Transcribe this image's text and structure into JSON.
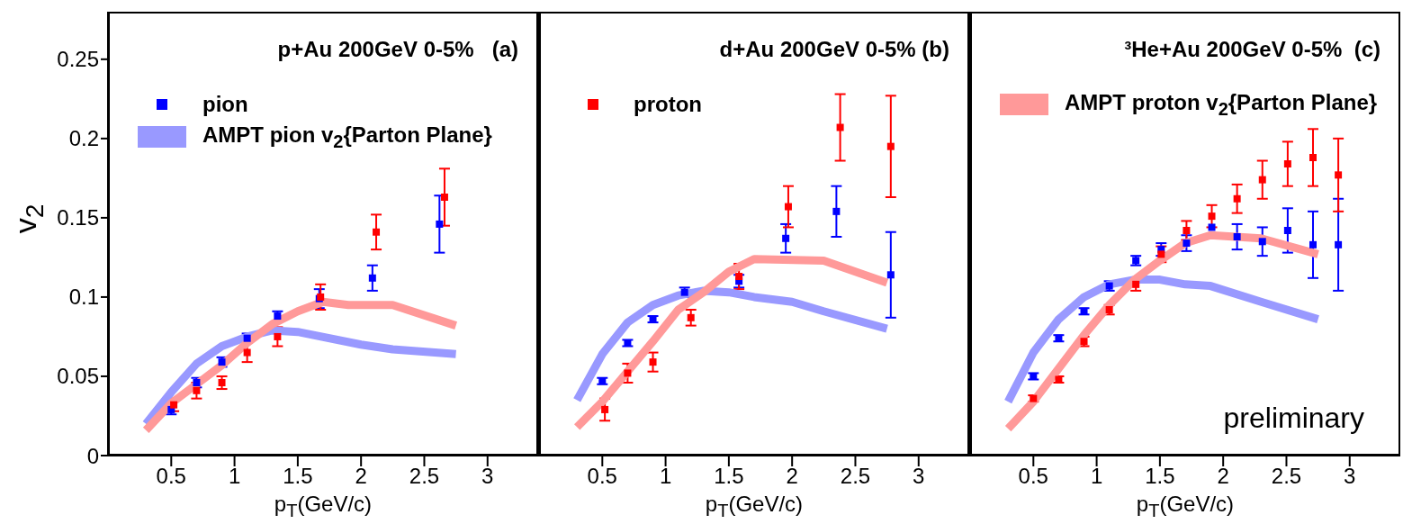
{
  "chart_data": [
    {
      "type": "scatter",
      "title": "p+Au 200GeV 0-5%   (a)",
      "xlabel": "p$_{T}$(GeV/c)",
      "ylabel": "v$_{2}$",
      "xlim": [
        0,
        3.4
      ],
      "xticks": [
        0.5,
        1,
        1.5,
        2,
        2.5,
        3
      ],
      "ylim": [
        0,
        0.28
      ],
      "yticks": [
        0,
        0.05,
        0.1,
        0.15,
        0.2,
        0.25
      ],
      "legend": "top left",
      "series": [
        {
          "name": "pion",
          "type": "scatter",
          "marker": "square",
          "color": "#0000ff",
          "x": [
            0.5,
            0.7,
            0.9,
            1.1,
            1.34,
            1.67,
            2.09,
            2.62
          ],
          "values": [
            0.029,
            0.046,
            0.059,
            0.074,
            0.088,
            0.099,
            0.112,
            0.146
          ],
          "errors": [
            0.003,
            0.003,
            0.003,
            0.003,
            0.003,
            0.006,
            0.008,
            0.018
          ]
        },
        {
          "type": "scatter",
          "marker": "square",
          "color": "#ff0000",
          "x": [
            0.52,
            0.7,
            0.9,
            1.1,
            1.34,
            1.68,
            2.12,
            2.66
          ],
          "values": [
            0.032,
            0.041,
            0.046,
            0.065,
            0.075,
            0.1,
            0.141,
            0.163
          ],
          "errors": [
            0.004,
            0.005,
            0.004,
            0.006,
            0.006,
            0.008,
            0.011,
            0.018
          ]
        },
        {
          "name": "AMPT pion v$_{2}${Parton Plane}",
          "type": "line",
          "marker": "none",
          "color": "#9999ff",
          "x": [
            0.3,
            0.5,
            0.7,
            0.9,
            1.1,
            1.3,
            1.5,
            2,
            2.25,
            2.75
          ],
          "values": [
            0.02,
            0.04,
            0.058,
            0.069,
            0.075,
            0.079,
            0.078,
            0.07,
            0.067,
            0.064
          ]
        },
        {
          "type": "line",
          "marker": "none",
          "color": "#ff9999",
          "x": [
            0.3,
            0.5,
            0.7,
            0.9,
            1.1,
            1.3,
            1.5,
            1.7,
            1.9,
            2.25,
            2.75
          ],
          "values": [
            0.016,
            0.033,
            0.045,
            0.057,
            0.071,
            0.083,
            0.091,
            0.097,
            0.095,
            0.095,
            0.082
          ]
        }
      ]
    },
    {
      "type": "scatter",
      "title": "d+Au 200GeV 0-5% (b)",
      "xlabel": "p$_{T}$(GeV/c)",
      "xlim": [
        0,
        3.4
      ],
      "xticks": [
        0.5,
        1,
        1.5,
        2,
        2.5,
        3
      ],
      "ylim": [
        0,
        0.28
      ],
      "yticks": [
        0,
        0.05,
        0.1,
        0.15,
        0.2,
        0.25
      ],
      "legend": "top left",
      "tick_labels": "x",
      "series": [
        {
          "type": "scatter",
          "marker": "square",
          "color": "#0000ff",
          "x": [
            0.5,
            0.7,
            0.9,
            1.15,
            1.58,
            1.95,
            2.35,
            2.78
          ],
          "values": [
            0.047,
            0.071,
            0.086,
            0.103,
            0.11,
            0.137,
            0.154,
            0.114
          ],
          "errors": [
            0.002,
            0.002,
            0.002,
            0.003,
            0.004,
            0.009,
            0.016,
            0.027
          ]
        },
        {
          "name": "proton",
          "type": "scatter",
          "marker": "square",
          "color": "#ff0000",
          "x": [
            0.52,
            0.7,
            0.9,
            1.2,
            1.58,
            1.97,
            2.38,
            2.78
          ],
          "values": [
            0.029,
            0.052,
            0.059,
            0.087,
            0.113,
            0.157,
            0.207,
            0.195
          ],
          "errors": [
            0.007,
            0.006,
            0.006,
            0.005,
            0.008,
            0.013,
            0.021,
            0.032
          ]
        },
        {
          "type": "line",
          "marker": "none",
          "color": "#9999ff",
          "x": [
            0.3,
            0.5,
            0.7,
            0.9,
            1.1,
            1.3,
            1.5,
            1.7,
            2,
            2.25,
            2.75
          ],
          "values": [
            0.035,
            0.064,
            0.084,
            0.095,
            0.101,
            0.104,
            0.103,
            0.1,
            0.097,
            0.091,
            0.08
          ]
        },
        {
          "type": "line",
          "marker": "none",
          "color": "#ff9999",
          "x": [
            0.3,
            0.5,
            0.7,
            0.9,
            1.1,
            1.3,
            1.5,
            1.7,
            2.25,
            2.75
          ],
          "values": [
            0.018,
            0.034,
            0.053,
            0.072,
            0.092,
            0.103,
            0.116,
            0.124,
            0.123,
            0.109
          ]
        }
      ]
    },
    {
      "type": "scatter",
      "title": "³He+Au 200GeV 0-5%  (c)",
      "xlabel": "p$_{T}$(GeV/c)",
      "xlim": [
        0,
        3.4
      ],
      "xticks": [
        0.5,
        1,
        1.5,
        2,
        2.5,
        3
      ],
      "ylim": [
        0,
        0.28
      ],
      "yticks": [
        0,
        0.05,
        0.1,
        0.15,
        0.2,
        0.25
      ],
      "legend": "top left",
      "tick_labels": "x",
      "annotations": [
        "preliminary"
      ],
      "series": [
        {
          "type": "scatter",
          "marker": "square",
          "color": "#0000ff",
          "x": [
            0.5,
            0.7,
            0.9,
            1.1,
            1.31,
            1.51,
            1.71,
            1.91,
            2.11,
            2.31,
            2.51,
            2.71,
            2.91
          ],
          "values": [
            0.05,
            0.074,
            0.091,
            0.107,
            0.123,
            0.13,
            0.134,
            0.144,
            0.138,
            0.135,
            0.142,
            0.133,
            0.133
          ],
          "errors": [
            0.002,
            0.002,
            0.002,
            0.003,
            0.003,
            0.004,
            0.005,
            null,
            0.008,
            0.009,
            0.014,
            0.021,
            0.029
          ]
        },
        {
          "type": "scatter",
          "marker": "square",
          "color": "#ff0000",
          "x": [
            0.5,
            0.7,
            0.9,
            1.1,
            1.31,
            1.51,
            1.71,
            1.91,
            2.11,
            2.31,
            2.51,
            2.71,
            2.91
          ],
          "values": [
            0.036,
            0.048,
            0.072,
            0.092,
            0.108,
            0.127,
            0.142,
            0.151,
            0.162,
            0.174,
            0.184,
            0.188,
            0.177
          ],
          "errors": [
            0.002,
            0.002,
            0.003,
            0.003,
            0.004,
            0.005,
            0.006,
            0.007,
            0.009,
            0.012,
            0.014,
            0.018,
            0.023
          ]
        },
        {
          "type": "line",
          "marker": "none",
          "color": "#9999ff",
          "x": [
            0.3,
            0.5,
            0.7,
            0.9,
            1.1,
            1.3,
            1.5,
            1.7,
            1.9,
            2.3,
            2.75
          ],
          "values": [
            0.034,
            0.065,
            0.086,
            0.1,
            0.108,
            0.111,
            0.111,
            0.108,
            0.107,
            0.097,
            0.086
          ]
        },
        {
          "name": "AMPT proton v$_{2}${Parton Plane}",
          "type": "line",
          "marker": "none",
          "color": "#ff9999",
          "x": [
            0.3,
            0.5,
            0.7,
            0.9,
            1.1,
            1.3,
            1.5,
            1.7,
            1.9,
            2.3,
            2.75
          ],
          "values": [
            0.017,
            0.034,
            0.055,
            0.076,
            0.095,
            0.111,
            0.123,
            0.134,
            0.139,
            0.137,
            0.127
          ]
        }
      ]
    }
  ]
}
